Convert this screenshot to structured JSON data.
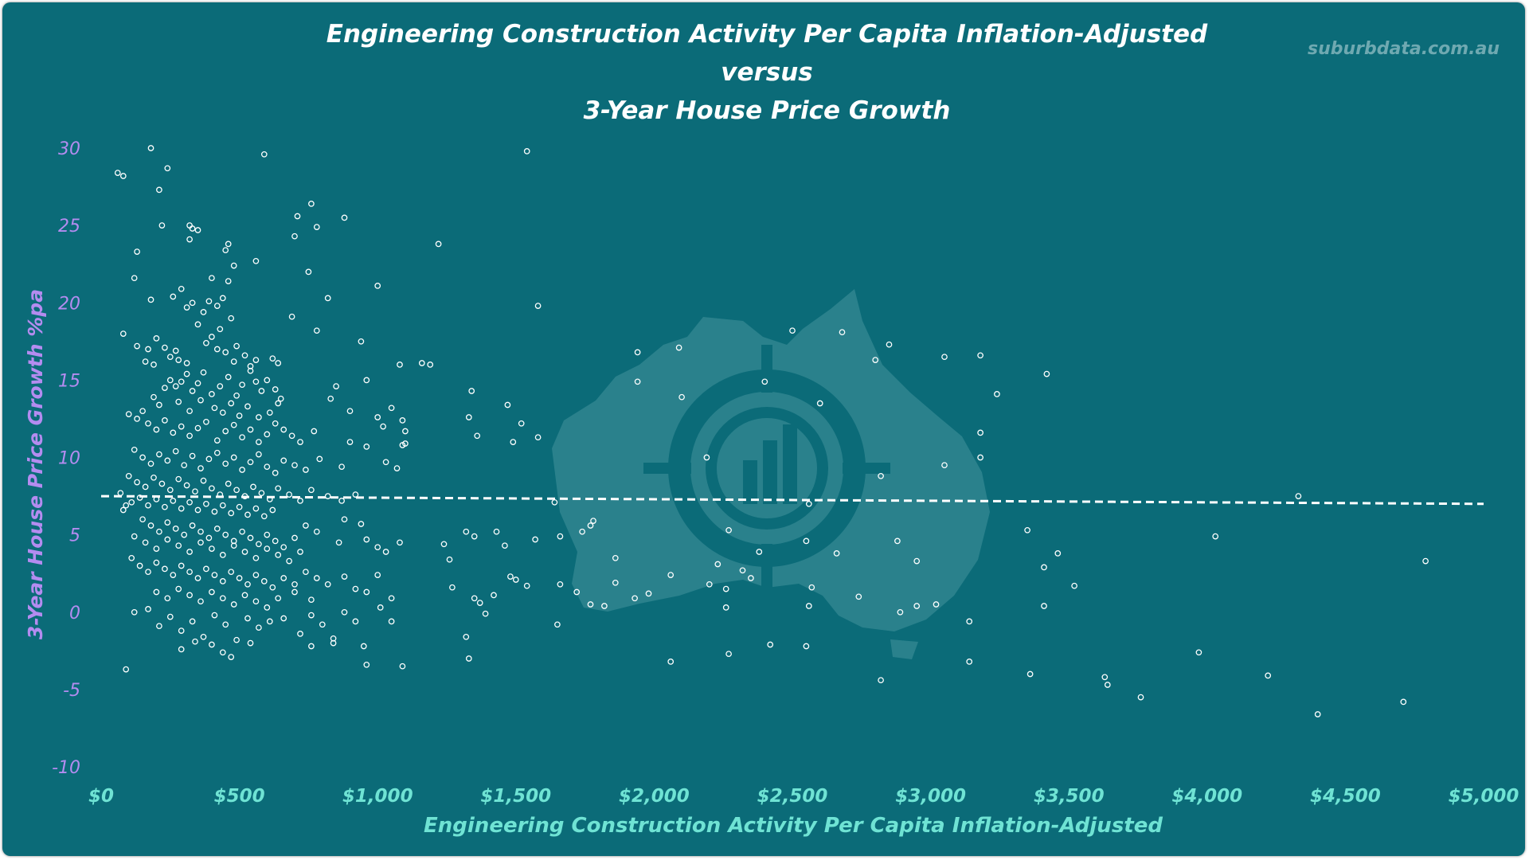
{
  "colors": {
    "background": "#0b6b78",
    "title": "#ffffff",
    "y_axis_text": "#b48cf0",
    "x_axis_text": "#6fe3d4",
    "points": "#ffffff",
    "trendline": "#ffffff",
    "watermark_text": "#6fa9b1"
  },
  "watermark": {
    "text": "suburbdata.com.au",
    "logo_icon": "australia-map-target-chart-icon"
  },
  "chart_data": {
    "type": "scatter",
    "title_lines": [
      "Engineering Construction Activity Per Capita Inflation-Adjusted",
      "versus",
      "3-Year House Price Growth"
    ],
    "xlabel": "Engineering Construction Activity Per Capita Inflation-Adjusted",
    "ylabel": "3-Year House Price Growth %pa",
    "xlim": [
      0,
      5000
    ],
    "ylim": [
      -10,
      30
    ],
    "x_ticks": [
      0,
      500,
      1000,
      1500,
      2000,
      2500,
      3000,
      3500,
      4000,
      4500,
      5000
    ],
    "x_tick_labels": [
      "$0",
      "$500",
      "$1,000",
      "$1,500",
      "$2,000",
      "$2,500",
      "$3,000",
      "$3,500",
      "$4,000",
      "$4,500",
      "$5,000"
    ],
    "y_ticks": [
      30,
      25,
      20,
      15,
      10,
      5,
      0,
      -5,
      -10
    ],
    "y_tick_labels": [
      "30",
      "25",
      "20",
      "15",
      "10",
      "5",
      "0",
      "-5",
      "-10"
    ],
    "grid": false,
    "legend": "none",
    "trendline": {
      "style": "dashed",
      "x": [
        0,
        5000
      ],
      "y": [
        7.5,
        7.0
      ]
    },
    "points": [
      [
        60,
        28.4
      ],
      [
        80,
        28.2
      ],
      [
        180,
        30.0
      ],
      [
        240,
        28.7
      ],
      [
        210,
        27.3
      ],
      [
        1540,
        29.8
      ],
      [
        590,
        29.6
      ],
      [
        220,
        25.0
      ],
      [
        320,
        25.0
      ],
      [
        330,
        24.8
      ],
      [
        320,
        24.1
      ],
      [
        350,
        24.7
      ],
      [
        450,
        23.4
      ],
      [
        460,
        23.8
      ],
      [
        560,
        22.7
      ],
      [
        480,
        22.4
      ],
      [
        710,
        25.6
      ],
      [
        700,
        24.3
      ],
      [
        760,
        26.4
      ],
      [
        780,
        24.9
      ],
      [
        880,
        25.5
      ],
      [
        1220,
        23.8
      ],
      [
        750,
        22.0
      ],
      [
        120,
        21.6
      ],
      [
        130,
        23.3
      ],
      [
        400,
        21.6
      ],
      [
        180,
        20.2
      ],
      [
        260,
        20.4
      ],
      [
        290,
        20.9
      ],
      [
        310,
        19.7
      ],
      [
        330,
        20.0
      ],
      [
        350,
        18.6
      ],
      [
        370,
        19.4
      ],
      [
        390,
        20.1
      ],
      [
        400,
        17.8
      ],
      [
        420,
        19.8
      ],
      [
        440,
        20.3
      ],
      [
        430,
        18.3
      ],
      [
        470,
        19.0
      ],
      [
        490,
        17.2
      ],
      [
        460,
        21.4
      ],
      [
        1580,
        19.8
      ],
      [
        820,
        20.3
      ],
      [
        690,
        19.1
      ],
      [
        1000,
        21.1
      ],
      [
        80,
        18.0
      ],
      [
        130,
        17.2
      ],
      [
        170,
        17.0
      ],
      [
        200,
        17.7
      ],
      [
        230,
        17.1
      ],
      [
        250,
        16.5
      ],
      [
        270,
        16.9
      ],
      [
        160,
        16.2
      ],
      [
        190,
        16.0
      ],
      [
        280,
        16.3
      ],
      [
        310,
        16.1
      ],
      [
        380,
        17.4
      ],
      [
        420,
        17.0
      ],
      [
        450,
        16.8
      ],
      [
        480,
        16.2
      ],
      [
        520,
        16.6
      ],
      [
        540,
        15.9
      ],
      [
        560,
        16.3
      ],
      [
        620,
        16.4
      ],
      [
        640,
        16.1
      ],
      [
        1940,
        16.8
      ],
      [
        2090,
        17.1
      ],
      [
        780,
        18.2
      ],
      [
        940,
        17.5
      ],
      [
        1160,
        16.1
      ],
      [
        1190,
        16.0
      ],
      [
        2500,
        18.2
      ],
      [
        2680,
        18.1
      ],
      [
        2850,
        17.3
      ],
      [
        2800,
        16.3
      ],
      [
        3050,
        16.5
      ],
      [
        3180,
        16.6
      ],
      [
        230,
        14.5
      ],
      [
        250,
        15.0
      ],
      [
        270,
        14.6
      ],
      [
        290,
        14.9
      ],
      [
        310,
        15.4
      ],
      [
        330,
        14.3
      ],
      [
        350,
        14.8
      ],
      [
        370,
        15.5
      ],
      [
        400,
        14.1
      ],
      [
        430,
        14.6
      ],
      [
        460,
        15.2
      ],
      [
        490,
        14.0
      ],
      [
        510,
        14.7
      ],
      [
        540,
        15.6
      ],
      [
        560,
        14.9
      ],
      [
        580,
        14.3
      ],
      [
        600,
        15.0
      ],
      [
        630,
        14.4
      ],
      [
        650,
        13.8
      ],
      [
        190,
        13.9
      ],
      [
        210,
        13.4
      ],
      [
        280,
        13.6
      ],
      [
        320,
        13.0
      ],
      [
        360,
        13.7
      ],
      [
        410,
        13.2
      ],
      [
        440,
        12.9
      ],
      [
        470,
        13.5
      ],
      [
        500,
        12.7
      ],
      [
        530,
        13.3
      ],
      [
        570,
        12.6
      ],
      [
        610,
        12.9
      ],
      [
        640,
        13.5
      ],
      [
        1080,
        16.0
      ],
      [
        850,
        14.6
      ],
      [
        960,
        15.0
      ],
      [
        1340,
        14.3
      ],
      [
        1470,
        13.4
      ],
      [
        1940,
        14.9
      ],
      [
        2100,
        13.9
      ],
      [
        2400,
        14.9
      ],
      [
        2600,
        13.5
      ],
      [
        3240,
        14.1
      ],
      [
        3420,
        15.4
      ],
      [
        100,
        12.8
      ],
      [
        130,
        12.5
      ],
      [
        150,
        13.0
      ],
      [
        170,
        12.2
      ],
      [
        200,
        11.8
      ],
      [
        230,
        12.4
      ],
      [
        260,
        11.6
      ],
      [
        290,
        12.0
      ],
      [
        320,
        11.4
      ],
      [
        350,
        11.9
      ],
      [
        380,
        12.3
      ],
      [
        420,
        11.1
      ],
      [
        450,
        11.7
      ],
      [
        480,
        12.1
      ],
      [
        510,
        11.3
      ],
      [
        540,
        11.8
      ],
      [
        570,
        11.0
      ],
      [
        600,
        11.5
      ],
      [
        630,
        12.2
      ],
      [
        660,
        11.8
      ],
      [
        690,
        11.4
      ],
      [
        720,
        11.0
      ],
      [
        770,
        11.7
      ],
      [
        830,
        13.8
      ],
      [
        900,
        13.0
      ],
      [
        1000,
        12.6
      ],
      [
        1020,
        12.0
      ],
      [
        1050,
        13.2
      ],
      [
        1090,
        12.4
      ],
      [
        1100,
        11.7
      ],
      [
        1100,
        10.9
      ],
      [
        1330,
        12.6
      ],
      [
        1360,
        11.4
      ],
      [
        1520,
        12.2
      ],
      [
        1580,
        11.3
      ],
      [
        1490,
        11.0
      ],
      [
        3180,
        11.6
      ],
      [
        120,
        10.5
      ],
      [
        150,
        10.0
      ],
      [
        180,
        9.6
      ],
      [
        210,
        10.2
      ],
      [
        240,
        9.8
      ],
      [
        270,
        10.4
      ],
      [
        300,
        9.5
      ],
      [
        330,
        10.1
      ],
      [
        360,
        9.3
      ],
      [
        390,
        9.9
      ],
      [
        420,
        10.3
      ],
      [
        450,
        9.6
      ],
      [
        480,
        10.0
      ],
      [
        510,
        9.2
      ],
      [
        540,
        9.7
      ],
      [
        570,
        10.2
      ],
      [
        600,
        9.4
      ],
      [
        630,
        9.0
      ],
      [
        660,
        9.8
      ],
      [
        700,
        9.5
      ],
      [
        740,
        9.2
      ],
      [
        790,
        9.9
      ],
      [
        870,
        9.4
      ],
      [
        900,
        11.0
      ],
      [
        960,
        10.7
      ],
      [
        1030,
        9.7
      ],
      [
        1070,
        9.3
      ],
      [
        1090,
        10.8
      ],
      [
        2190,
        10.0
      ],
      [
        3050,
        9.5
      ],
      [
        3180,
        10.0
      ],
      [
        2820,
        8.8
      ],
      [
        100,
        8.8
      ],
      [
        130,
        8.4
      ],
      [
        160,
        8.1
      ],
      [
        190,
        8.7
      ],
      [
        220,
        8.3
      ],
      [
        250,
        7.9
      ],
      [
        280,
        8.6
      ],
      [
        310,
        8.2
      ],
      [
        340,
        7.8
      ],
      [
        370,
        8.5
      ],
      [
        400,
        8.0
      ],
      [
        430,
        7.6
      ],
      [
        460,
        8.3
      ],
      [
        490,
        7.9
      ],
      [
        520,
        7.5
      ],
      [
        550,
        8.1
      ],
      [
        580,
        7.7
      ],
      [
        610,
        7.3
      ],
      [
        640,
        8.0
      ],
      [
        680,
        7.6
      ],
      [
        720,
        7.2
      ],
      [
        760,
        7.9
      ],
      [
        820,
        7.5
      ],
      [
        870,
        7.2
      ],
      [
        920,
        7.6
      ],
      [
        70,
        7.7
      ],
      [
        110,
        7.1
      ],
      [
        140,
        7.4
      ],
      [
        170,
        6.9
      ],
      [
        200,
        7.3
      ],
      [
        230,
        6.8
      ],
      [
        260,
        7.2
      ],
      [
        290,
        6.7
      ],
      [
        320,
        7.1
      ],
      [
        350,
        6.6
      ],
      [
        380,
        7.0
      ],
      [
        410,
        6.5
      ],
      [
        440,
        6.9
      ],
      [
        470,
        6.4
      ],
      [
        500,
        6.8
      ],
      [
        530,
        6.3
      ],
      [
        560,
        6.7
      ],
      [
        590,
        6.2
      ],
      [
        620,
        6.6
      ],
      [
        80,
        6.6
      ],
      [
        90,
        6.9
      ],
      [
        1640,
        7.1
      ],
      [
        2560,
        7.0
      ],
      [
        4330,
        7.5
      ],
      [
        150,
        6.0
      ],
      [
        180,
        5.6
      ],
      [
        210,
        5.2
      ],
      [
        240,
        5.8
      ],
      [
        270,
        5.4
      ],
      [
        300,
        5.0
      ],
      [
        330,
        5.6
      ],
      [
        360,
        5.2
      ],
      [
        390,
        4.8
      ],
      [
        420,
        5.4
      ],
      [
        450,
        5.0
      ],
      [
        480,
        4.6
      ],
      [
        510,
        5.2
      ],
      [
        540,
        4.8
      ],
      [
        570,
        4.4
      ],
      [
        600,
        5.0
      ],
      [
        630,
        4.6
      ],
      [
        660,
        4.2
      ],
      [
        700,
        4.8
      ],
      [
        740,
        5.6
      ],
      [
        780,
        5.2
      ],
      [
        120,
        4.9
      ],
      [
        160,
        4.5
      ],
      [
        200,
        4.1
      ],
      [
        240,
        4.7
      ],
      [
        280,
        4.3
      ],
      [
        320,
        3.9
      ],
      [
        360,
        4.5
      ],
      [
        400,
        4.1
      ],
      [
        440,
        3.7
      ],
      [
        480,
        4.3
      ],
      [
        520,
        3.9
      ],
      [
        560,
        3.5
      ],
      [
        600,
        4.1
      ],
      [
        640,
        3.7
      ],
      [
        680,
        3.3
      ],
      [
        720,
        3.9
      ],
      [
        860,
        4.5
      ],
      [
        880,
        6.0
      ],
      [
        940,
        5.7
      ],
      [
        960,
        4.7
      ],
      [
        1000,
        4.2
      ],
      [
        1030,
        3.9
      ],
      [
        1080,
        4.5
      ],
      [
        1260,
        3.4
      ],
      [
        1240,
        4.4
      ],
      [
        1320,
        5.2
      ],
      [
        1350,
        4.9
      ],
      [
        1430,
        5.2
      ],
      [
        1460,
        4.3
      ],
      [
        1570,
        4.7
      ],
      [
        1660,
        4.9
      ],
      [
        1740,
        5.2
      ],
      [
        1770,
        5.6
      ],
      [
        1780,
        5.9
      ],
      [
        2270,
        5.3
      ],
      [
        2550,
        4.6
      ],
      [
        2880,
        4.6
      ],
      [
        3350,
        5.3
      ],
      [
        4030,
        4.9
      ],
      [
        3460,
        3.8
      ],
      [
        4790,
        3.3
      ],
      [
        110,
        3.5
      ],
      [
        140,
        3.0
      ],
      [
        170,
        2.6
      ],
      [
        200,
        3.2
      ],
      [
        230,
        2.8
      ],
      [
        260,
        2.4
      ],
      [
        290,
        3.0
      ],
      [
        320,
        2.6
      ],
      [
        350,
        2.2
      ],
      [
        380,
        2.8
      ],
      [
        410,
        2.4
      ],
      [
        440,
        2.0
      ],
      [
        470,
        2.6
      ],
      [
        500,
        2.2
      ],
      [
        530,
        1.8
      ],
      [
        560,
        2.4
      ],
      [
        590,
        2.0
      ],
      [
        620,
        1.6
      ],
      [
        660,
        2.2
      ],
      [
        700,
        1.8
      ],
      [
        740,
        2.6
      ],
      [
        780,
        2.2
      ],
      [
        820,
        1.8
      ],
      [
        880,
        2.3
      ],
      [
        920,
        1.5
      ],
      [
        960,
        1.3
      ],
      [
        1000,
        2.4
      ],
      [
        1050,
        0.9
      ],
      [
        200,
        1.3
      ],
      [
        240,
        0.9
      ],
      [
        280,
        1.5
      ],
      [
        320,
        1.1
      ],
      [
        360,
        0.7
      ],
      [
        400,
        1.3
      ],
      [
        440,
        0.9
      ],
      [
        480,
        0.5
      ],
      [
        520,
        1.1
      ],
      [
        560,
        0.7
      ],
      [
        600,
        0.3
      ],
      [
        640,
        0.9
      ],
      [
        700,
        1.3
      ],
      [
        760,
        0.8
      ],
      [
        1270,
        1.6
      ],
      [
        1350,
        0.9
      ],
      [
        1370,
        0.6
      ],
      [
        1420,
        1.1
      ],
      [
        1480,
        2.3
      ],
      [
        1500,
        2.1
      ],
      [
        1540,
        1.7
      ],
      [
        1660,
        1.8
      ],
      [
        1720,
        1.3
      ],
      [
        1860,
        1.9
      ],
      [
        1860,
        3.5
      ],
      [
        1930,
        0.9
      ],
      [
        1980,
        1.2
      ],
      [
        2060,
        2.4
      ],
      [
        2200,
        1.8
      ],
      [
        2230,
        3.1
      ],
      [
        2320,
        2.7
      ],
      [
        2350,
        2.2
      ],
      [
        2380,
        3.9
      ],
      [
        2260,
        1.5
      ],
      [
        2570,
        1.6
      ],
      [
        2660,
        3.8
      ],
      [
        2740,
        1.0
      ],
      [
        2950,
        3.3
      ],
      [
        3410,
        2.9
      ],
      [
        3520,
        1.7
      ],
      [
        120,
        0.0
      ],
      [
        170,
        0.2
      ],
      [
        210,
        -0.9
      ],
      [
        250,
        -0.3
      ],
      [
        290,
        -1.2
      ],
      [
        330,
        -0.6
      ],
      [
        370,
        -1.6
      ],
      [
        410,
        -0.2
      ],
      [
        450,
        -0.8
      ],
      [
        490,
        -1.8
      ],
      [
        530,
        -0.4
      ],
      [
        570,
        -1.0
      ],
      [
        610,
        -0.6
      ],
      [
        660,
        -0.4
      ],
      [
        720,
        -1.4
      ],
      [
        760,
        -0.2
      ],
      [
        800,
        -0.8
      ],
      [
        840,
        -1.7
      ],
      [
        880,
        0.0
      ],
      [
        920,
        -0.6
      ],
      [
        950,
        -2.2
      ],
      [
        1010,
        0.3
      ],
      [
        1050,
        -0.6
      ],
      [
        1320,
        -1.6
      ],
      [
        1390,
        -0.1
      ],
      [
        1650,
        -0.8
      ],
      [
        1770,
        0.5
      ],
      [
        1820,
        0.4
      ],
      [
        2260,
        0.3
      ],
      [
        2560,
        0.4
      ],
      [
        2890,
        0.0
      ],
      [
        2950,
        0.4
      ],
      [
        3020,
        0.5
      ],
      [
        3140,
        -0.6
      ],
      [
        3410,
        0.4
      ],
      [
        290,
        -2.4
      ],
      [
        340,
        -1.9
      ],
      [
        400,
        -2.1
      ],
      [
        440,
        -2.6
      ],
      [
        470,
        -2.9
      ],
      [
        540,
        -2.0
      ],
      [
        760,
        -2.2
      ],
      [
        840,
        -2.0
      ],
      [
        960,
        -3.4
      ],
      [
        1090,
        -3.5
      ],
      [
        1330,
        -3.0
      ],
      [
        2060,
        -3.2
      ],
      [
        2270,
        -2.7
      ],
      [
        2420,
        -2.1
      ],
      [
        2550,
        -2.2
      ],
      [
        2820,
        -4.4
      ],
      [
        3140,
        -3.2
      ],
      [
        3360,
        -4.0
      ],
      [
        3630,
        -4.2
      ],
      [
        3640,
        -4.7
      ],
      [
        3760,
        -5.5
      ],
      [
        3970,
        -2.6
      ],
      [
        4220,
        -4.1
      ],
      [
        4400,
        -6.6
      ],
      [
        4710,
        -5.8
      ],
      [
        90,
        -3.7
      ]
    ]
  }
}
